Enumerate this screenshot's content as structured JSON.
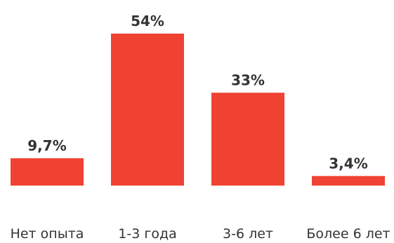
{
  "chart_data": {
    "type": "bar",
    "title": "",
    "xlabel": "",
    "ylabel": "",
    "categories": [
      "Нет опыта",
      "1-3 года",
      "3-6 лет",
      "Более 6 лет"
    ],
    "values": [
      9.7,
      54,
      33,
      3.4
    ],
    "value_labels": [
      "9,7%",
      "54%",
      "33%",
      "3,4%"
    ],
    "unit": "%",
    "ylim": [
      0,
      54
    ],
    "grid": false,
    "legend": "none",
    "bar_color": "#F04232",
    "text_color": "#333333"
  }
}
